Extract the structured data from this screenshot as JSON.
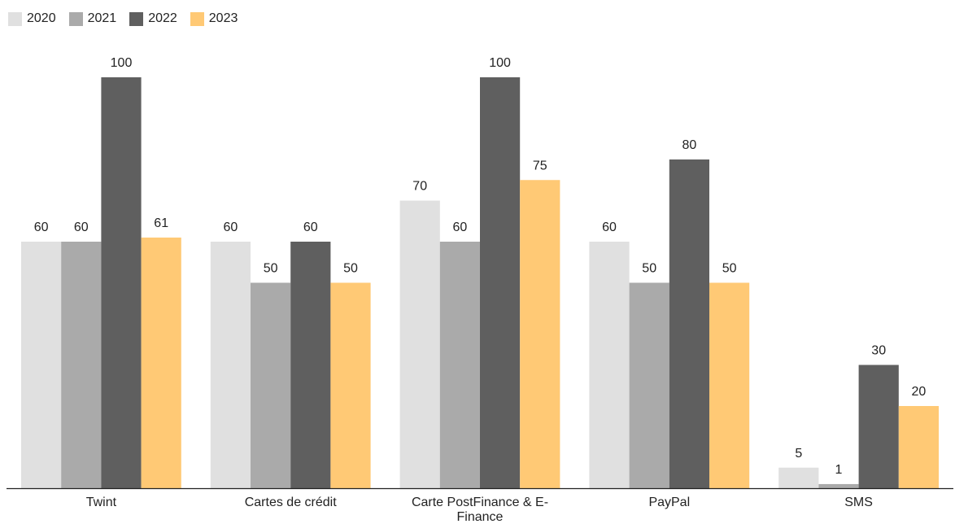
{
  "chart_data": {
    "type": "bar",
    "title": "",
    "xlabel": "",
    "ylabel": "",
    "ylim": [
      0,
      100
    ],
    "grid": false,
    "legend_position": "top-left",
    "categories": [
      "Twint",
      "Cartes de crédit",
      "Carte PostFinance & E-Finance",
      "PayPal",
      "SMS"
    ],
    "category_lines": [
      [
        "Twint"
      ],
      [
        "Cartes de crédit"
      ],
      [
        "Carte PostFinance & E-",
        "Finance"
      ],
      [
        "PayPal"
      ],
      [
        "SMS"
      ]
    ],
    "series": [
      {
        "name": "2020",
        "color": "#e0e0e0",
        "values": [
          60,
          60,
          70,
          60,
          5
        ]
      },
      {
        "name": "2021",
        "color": "#aaaaaa",
        "values": [
          60,
          50,
          60,
          50,
          1
        ]
      },
      {
        "name": "2022",
        "color": "#5f5f5f",
        "values": [
          100,
          60,
          100,
          80,
          30
        ]
      },
      {
        "name": "2023",
        "color": "#ffc975",
        "values": [
          61,
          50,
          75,
          50,
          20
        ]
      }
    ],
    "axis_color": "#222222"
  }
}
